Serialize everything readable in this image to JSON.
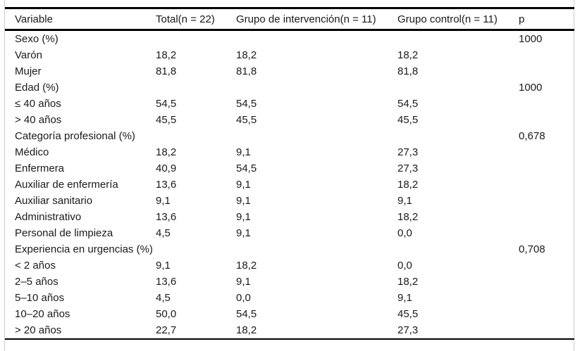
{
  "figure": {
    "columns": [
      "Variable",
      "Total(n = 22)",
      "Grupo de intervención(n = 11)",
      "Grupo control(n = 11)",
      "p"
    ],
    "rows": [
      {
        "cells": [
          "Sexo (%)",
          "",
          "",
          "",
          "1000"
        ]
      },
      {
        "cells": [
          "Varón",
          "18,2",
          "18,2",
          "18,2",
          ""
        ]
      },
      {
        "cells": [
          "Mujer",
          "81,8",
          "81,8",
          "81,8",
          ""
        ]
      },
      {
        "cells": [
          "Edad (%)",
          "",
          "",
          "",
          "1000"
        ]
      },
      {
        "cells": [
          "≤ 40 años",
          "54,5",
          "54,5",
          "54,5",
          ""
        ]
      },
      {
        "cells": [
          "> 40 años",
          "45,5",
          "45,5",
          "45,5",
          ""
        ]
      },
      {
        "cells": [
          "Categoría profesional (%)",
          "",
          "",
          "",
          "0,678"
        ]
      },
      {
        "cells": [
          "Médico",
          "18,2",
          "9,1",
          "27,3",
          ""
        ]
      },
      {
        "cells": [
          "Enfermera",
          "40,9",
          "54,5",
          "27,3",
          ""
        ]
      },
      {
        "cells": [
          "Auxiliar de enfermería",
          "13,6",
          "9,1",
          "18,2",
          ""
        ]
      },
      {
        "cells": [
          "Auxiliar sanitario",
          "9,1",
          "9,1",
          "9,1",
          ""
        ]
      },
      {
        "cells": [
          "Administrativo",
          "13,6",
          "9,1",
          "18,2",
          ""
        ]
      },
      {
        "cells": [
          "Personal de limpieza",
          "4,5",
          "9,1",
          "0,0",
          ""
        ]
      },
      {
        "cells": [
          "Experiencia en urgencias (%)",
          "",
          "",
          "",
          "0,708"
        ]
      },
      {
        "cells": [
          "< 2 años",
          "9,1",
          "18,2",
          "0,0",
          ""
        ]
      },
      {
        "cells": [
          "2–5 años",
          "13,6",
          "9,1",
          "18,2",
          ""
        ]
      },
      {
        "cells": [
          "5–10 años",
          "4,5",
          "0,0",
          "9,1",
          ""
        ]
      },
      {
        "cells": [
          "10–20 años",
          "50,0",
          "54,5",
          "45,5",
          ""
        ]
      },
      {
        "cells": [
          "> 20 años",
          "22,7",
          "18,2",
          "27,3",
          ""
        ]
      }
    ]
  },
  "colors": {
    "rule": "#000000",
    "frame": "#cccccc",
    "text": "#1a1a1a",
    "background": "#ffffff"
  }
}
